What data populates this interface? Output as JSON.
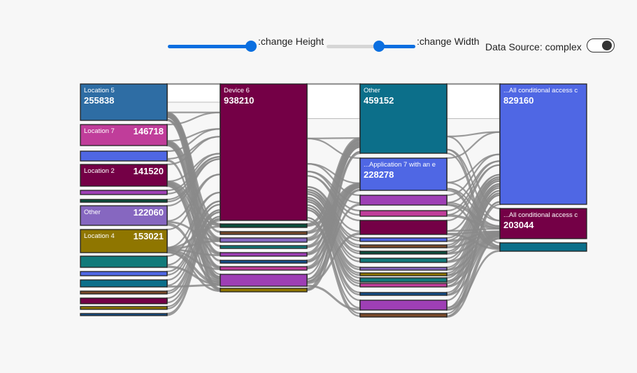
{
  "controls": {
    "height_label": ":change Height",
    "width_label": ":change Width",
    "data_source_label": "Data Source: complex",
    "height_slider_value": 1.0,
    "width_slider_value": 0.6,
    "data_source_toggle_on": true
  },
  "colors": {
    "link": "#8a8a8a",
    "node_border": "#222222",
    "palette": [
      "#2e6da4",
      "#c03d9a",
      "#4f67e4",
      "#740046",
      "#9e3fb5",
      "#0b4d3c",
      "#8667c0",
      "#8f7600",
      "#127a7a",
      "#0c6f8a",
      "#7a4a2a",
      "#154f8a"
    ]
  },
  "sankey": {
    "columns": [
      {
        "nodes": [
          {
            "label": "Location 5",
            "value": "255838",
            "color": "#2e6da4"
          },
          {
            "label": "Location 7",
            "value": "146718",
            "color": "#c03d9a"
          },
          {
            "label": "",
            "value": "",
            "color": "#4f67e4"
          },
          {
            "label": "Location 2",
            "value": "141520",
            "color": "#740046"
          },
          {
            "label": "",
            "value": "",
            "color": "#9e3fb5"
          },
          {
            "label": "",
            "value": "",
            "color": "#0b4d3c"
          },
          {
            "label": "Other",
            "value": "122060",
            "color": "#8667c0"
          },
          {
            "label": "Location 4",
            "value": "153021",
            "color": "#8f7600"
          },
          {
            "label": "",
            "value": "",
            "color": "#127a7a"
          },
          {
            "label": "",
            "value": "",
            "color": "#4f67e4"
          },
          {
            "label": "",
            "value": "",
            "color": "#0c6f8a"
          },
          {
            "label": "",
            "value": "",
            "color": "#7a4a2a"
          },
          {
            "label": "",
            "value": "",
            "color": "#740046"
          },
          {
            "label": "",
            "value": "",
            "color": "#8f7600"
          },
          {
            "label": "",
            "value": "",
            "color": "#154f8a"
          }
        ]
      },
      {
        "nodes": [
          {
            "label": "Device 6",
            "value": "938210",
            "color": "#740046"
          },
          {
            "label": "",
            "value": "",
            "color": "#0b4d3c"
          },
          {
            "label": "",
            "value": "",
            "color": "#7a4a2a"
          },
          {
            "label": "",
            "value": "",
            "color": "#8667c0"
          },
          {
            "label": "",
            "value": "",
            "color": "#127a7a"
          },
          {
            "label": "",
            "value": "",
            "color": "#9e3fb5"
          },
          {
            "label": "",
            "value": "",
            "color": "#154f8a"
          },
          {
            "label": "",
            "value": "",
            "color": "#c03d9a"
          },
          {
            "label": "",
            "value": "",
            "color": "#9e3fb5"
          },
          {
            "label": "",
            "value": "",
            "color": "#8f7600"
          }
        ]
      },
      {
        "nodes": [
          {
            "label": "Other",
            "value": "459152",
            "color": "#0c6f8a"
          },
          {
            "label": "...Application 7 with an e",
            "value": "228278",
            "color": "#4f67e4"
          },
          {
            "label": "",
            "value": "",
            "color": "#9e3fb5"
          },
          {
            "label": "",
            "value": "",
            "color": "#c03d9a"
          },
          {
            "label": "",
            "value": "",
            "color": "#740046"
          },
          {
            "label": "",
            "value": "",
            "color": "#4f67e4"
          },
          {
            "label": "",
            "value": "",
            "color": "#7a4a2a"
          },
          {
            "label": "",
            "value": "",
            "color": "#0b4d3c"
          },
          {
            "label": "",
            "value": "",
            "color": "#127a7a"
          },
          {
            "label": "",
            "value": "",
            "color": "#8667c0"
          },
          {
            "label": "",
            "value": "",
            "color": "#8f7600"
          },
          {
            "label": "",
            "value": "",
            "color": "#127a7a"
          },
          {
            "label": "",
            "value": "",
            "color": "#c03d9a"
          },
          {
            "label": "",
            "value": "",
            "color": "#154f8a"
          },
          {
            "label": "",
            "value": "",
            "color": "#9e3fb5"
          },
          {
            "label": "",
            "value": "",
            "color": "#7a4a2a"
          }
        ]
      },
      {
        "nodes": [
          {
            "label": "...All conditional access c",
            "value": "829160",
            "color": "#4f67e4"
          },
          {
            "label": "...All conditional access c",
            "value": "203044",
            "color": "#740046"
          },
          {
            "label": "",
            "value": "",
            "color": "#0c6f8a"
          }
        ]
      }
    ]
  }
}
